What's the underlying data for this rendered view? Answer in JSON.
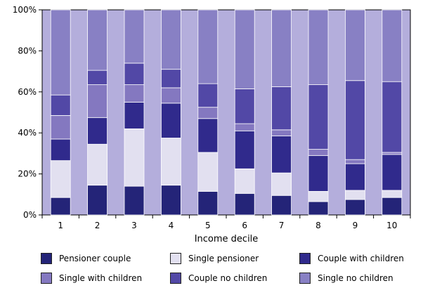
{
  "chart_data": {
    "type": "bar",
    "stacked": true,
    "categories": [
      "1",
      "2",
      "3",
      "4",
      "5",
      "6",
      "7",
      "8",
      "9",
      "10"
    ],
    "xlabel": "Income decile",
    "ylabel": "",
    "ylim": [
      0,
      100
    ],
    "y_ticks": [
      "0%",
      "20%",
      "40%",
      "60%",
      "80%",
      "100%"
    ],
    "grid": false,
    "legend_position": "bottom",
    "series": [
      {
        "name": "Pensioner couple",
        "color": "#242478",
        "values": [
          8.5,
          14.5,
          14,
          14.5,
          11.5,
          10.5,
          9.5,
          6.5,
          7.5,
          8.5
        ]
      },
      {
        "name": "Single pensioner",
        "color": "#e2e0f0",
        "values": [
          18,
          20,
          28,
          23,
          19,
          12,
          11,
          5,
          4.5,
          3.5
        ]
      },
      {
        "name": "Couple with children",
        "color": "#302a8c",
        "values": [
          10.5,
          13,
          13,
          17,
          16.5,
          18.5,
          18,
          17.5,
          13,
          17.5
        ]
      },
      {
        "name": "Single with children",
        "color": "#8478c0",
        "values": [
          11.5,
          16,
          8.5,
          7.5,
          5.5,
          3.5,
          3,
          3,
          2,
          1
        ]
      },
      {
        "name": "Couple no children",
        "color": "#5248a6",
        "values": [
          10,
          7,
          10.5,
          9,
          11.5,
          17,
          21,
          31.5,
          38.5,
          34.5
        ]
      },
      {
        "name": "Single no children",
        "color": "#8880c4",
        "values": [
          41.5,
          29.5,
          26,
          29,
          36,
          38.5,
          37.5,
          36.5,
          34.5,
          35
        ]
      }
    ]
  }
}
